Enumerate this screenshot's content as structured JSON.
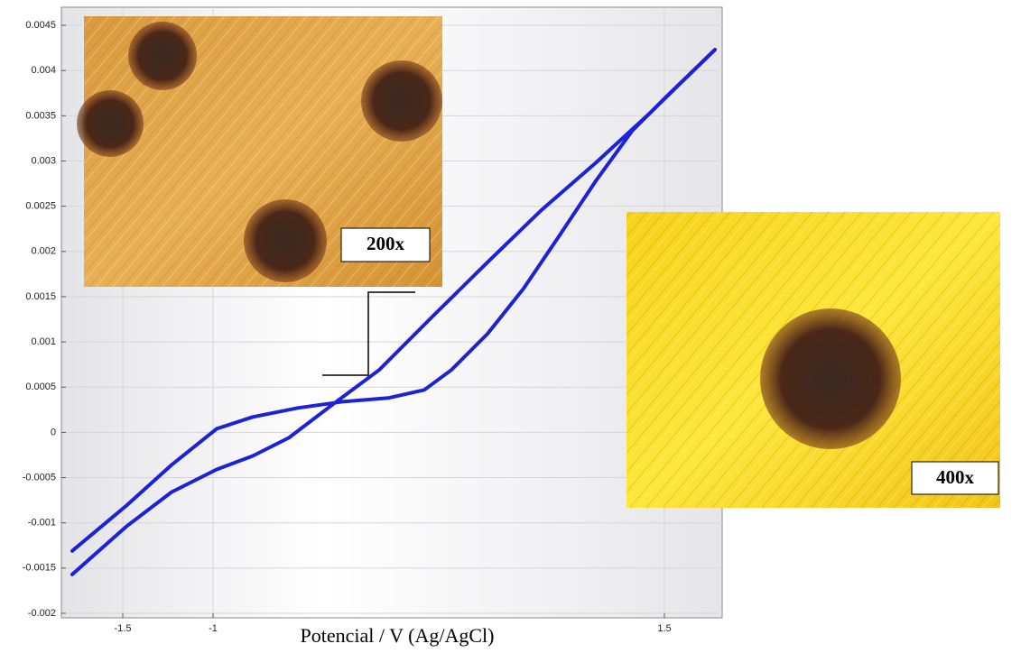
{
  "chart_data": {
    "type": "line",
    "x_label": "Potencial / V (Ag/AgCl)",
    "xlim": [
      -1.84,
      1.82
    ],
    "ylim": [
      -0.00205,
      0.0047
    ],
    "xticks": [
      -1.5,
      -1,
      1.5
    ],
    "yticks": [
      -0.002,
      -0.0015,
      -0.001,
      -0.0005,
      0,
      0.0005,
      0.001,
      0.0015,
      0.002,
      0.0025,
      0.003,
      0.0035,
      0.004,
      0.0045
    ],
    "grid": true,
    "series": [
      {
        "color": "#1c22d8",
        "x": [
          -1.78,
          -1.48,
          -1.23,
          -0.98,
          -0.78,
          -0.53,
          -0.28,
          -0.03,
          0.17,
          0.32,
          0.52,
          0.72,
          0.92,
          1.12,
          1.32,
          1.52,
          1.78
        ],
        "values": [
          -0.00131,
          -0.00081,
          -0.00036,
          4e-05,
          0.00017,
          0.00027,
          0.00034,
          0.00038,
          0.00047,
          0.00069,
          0.00109,
          0.00159,
          0.00218,
          0.00278,
          0.00333,
          0.00373,
          0.00423
        ]
      },
      {
        "color": "#1c22d8",
        "x": [
          -1.78,
          -1.48,
          -1.23,
          -0.98,
          -0.78,
          -0.58,
          -0.33,
          -0.08,
          0.22,
          0.52,
          0.82,
          1.12,
          1.42,
          1.78
        ],
        "values": [
          -0.00157,
          -0.00104,
          -0.00066,
          -0.00041,
          -0.00026,
          -6e-05,
          0.00032,
          0.00069,
          0.00129,
          0.00188,
          0.00246,
          0.00298,
          0.00353,
          0.00423
        ]
      }
    ],
    "annotations": [
      "200x",
      "400x"
    ]
  }
}
